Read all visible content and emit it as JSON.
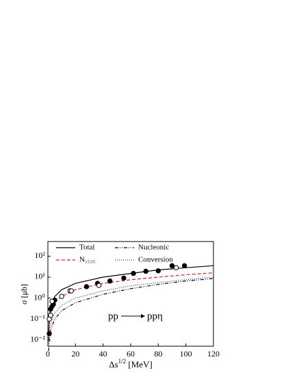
{
  "chart_data": {
    "type": "line",
    "log_y": true,
    "y_label": "σ [μb]",
    "x_label": {
      "base": "Δs",
      "sup": "1/2",
      "rest": " [MeV]"
    },
    "annotation": {
      "left": "pp",
      "right": "ppη"
    },
    "xlim": [
      0,
      120
    ],
    "xticks": [
      0,
      20,
      40,
      60,
      80,
      100,
      120
    ],
    "ylim": [
      0.005,
      500
    ],
    "yticks": [
      {
        "value": 0.01,
        "label": "10⁻²"
      },
      {
        "value": 0.1,
        "label": "10⁻¹"
      },
      {
        "value": 1,
        "label": "10⁰"
      },
      {
        "value": 10,
        "label": "10¹"
      },
      {
        "value": 100,
        "label": "10²"
      }
    ],
    "x": [
      0.5,
      1,
      2,
      5,
      10,
      20,
      40,
      60,
      80,
      100,
      120
    ],
    "series": [
      {
        "name": "Total",
        "color": "#000000",
        "dash": "",
        "values": [
          0.02,
          0.1,
          0.4,
          1.2,
          2.5,
          5,
          10,
          15,
          22,
          28,
          35
        ]
      },
      {
        "name": "N₁₅₃₅",
        "color": "#d62020",
        "dash": "5,3",
        "values": [
          0.01,
          0.05,
          0.2,
          0.6,
          1.2,
          2.5,
          5,
          7.5,
          10,
          13,
          16
        ]
      },
      {
        "name": "Nucleonic",
        "color": "#000000",
        "dash": "5,2,1,2,1,2",
        "values": [
          0.003,
          0.01,
          0.03,
          0.1,
          0.25,
          0.6,
          1.5,
          2.8,
          4.5,
          6.5,
          8.5
        ]
      },
      {
        "name": "Conversion",
        "color": "#2030b0",
        "dash": "1,2",
        "values": [
          0.005,
          0.02,
          0.06,
          0.2,
          0.45,
          1,
          2.2,
          3.8,
          5.5,
          7.5,
          10
        ]
      }
    ],
    "points": [
      {
        "filled": true,
        "x": [
          1,
          2,
          3,
          4,
          5,
          28,
          36,
          45,
          55,
          62,
          71,
          80,
          90,
          99
        ],
        "values": [
          0.02,
          0.3,
          0.4,
          0.5,
          0.8,
          3.5,
          5,
          6.5,
          9,
          15,
          19,
          20,
          35,
          35
        ]
      },
      {
        "filled": false,
        "x": [
          1,
          2,
          3,
          10,
          16,
          17,
          37,
          93
        ],
        "values": [
          0.1,
          0.15,
          0.7,
          1.2,
          2.2,
          2.2,
          4,
          28
        ]
      }
    ]
  }
}
